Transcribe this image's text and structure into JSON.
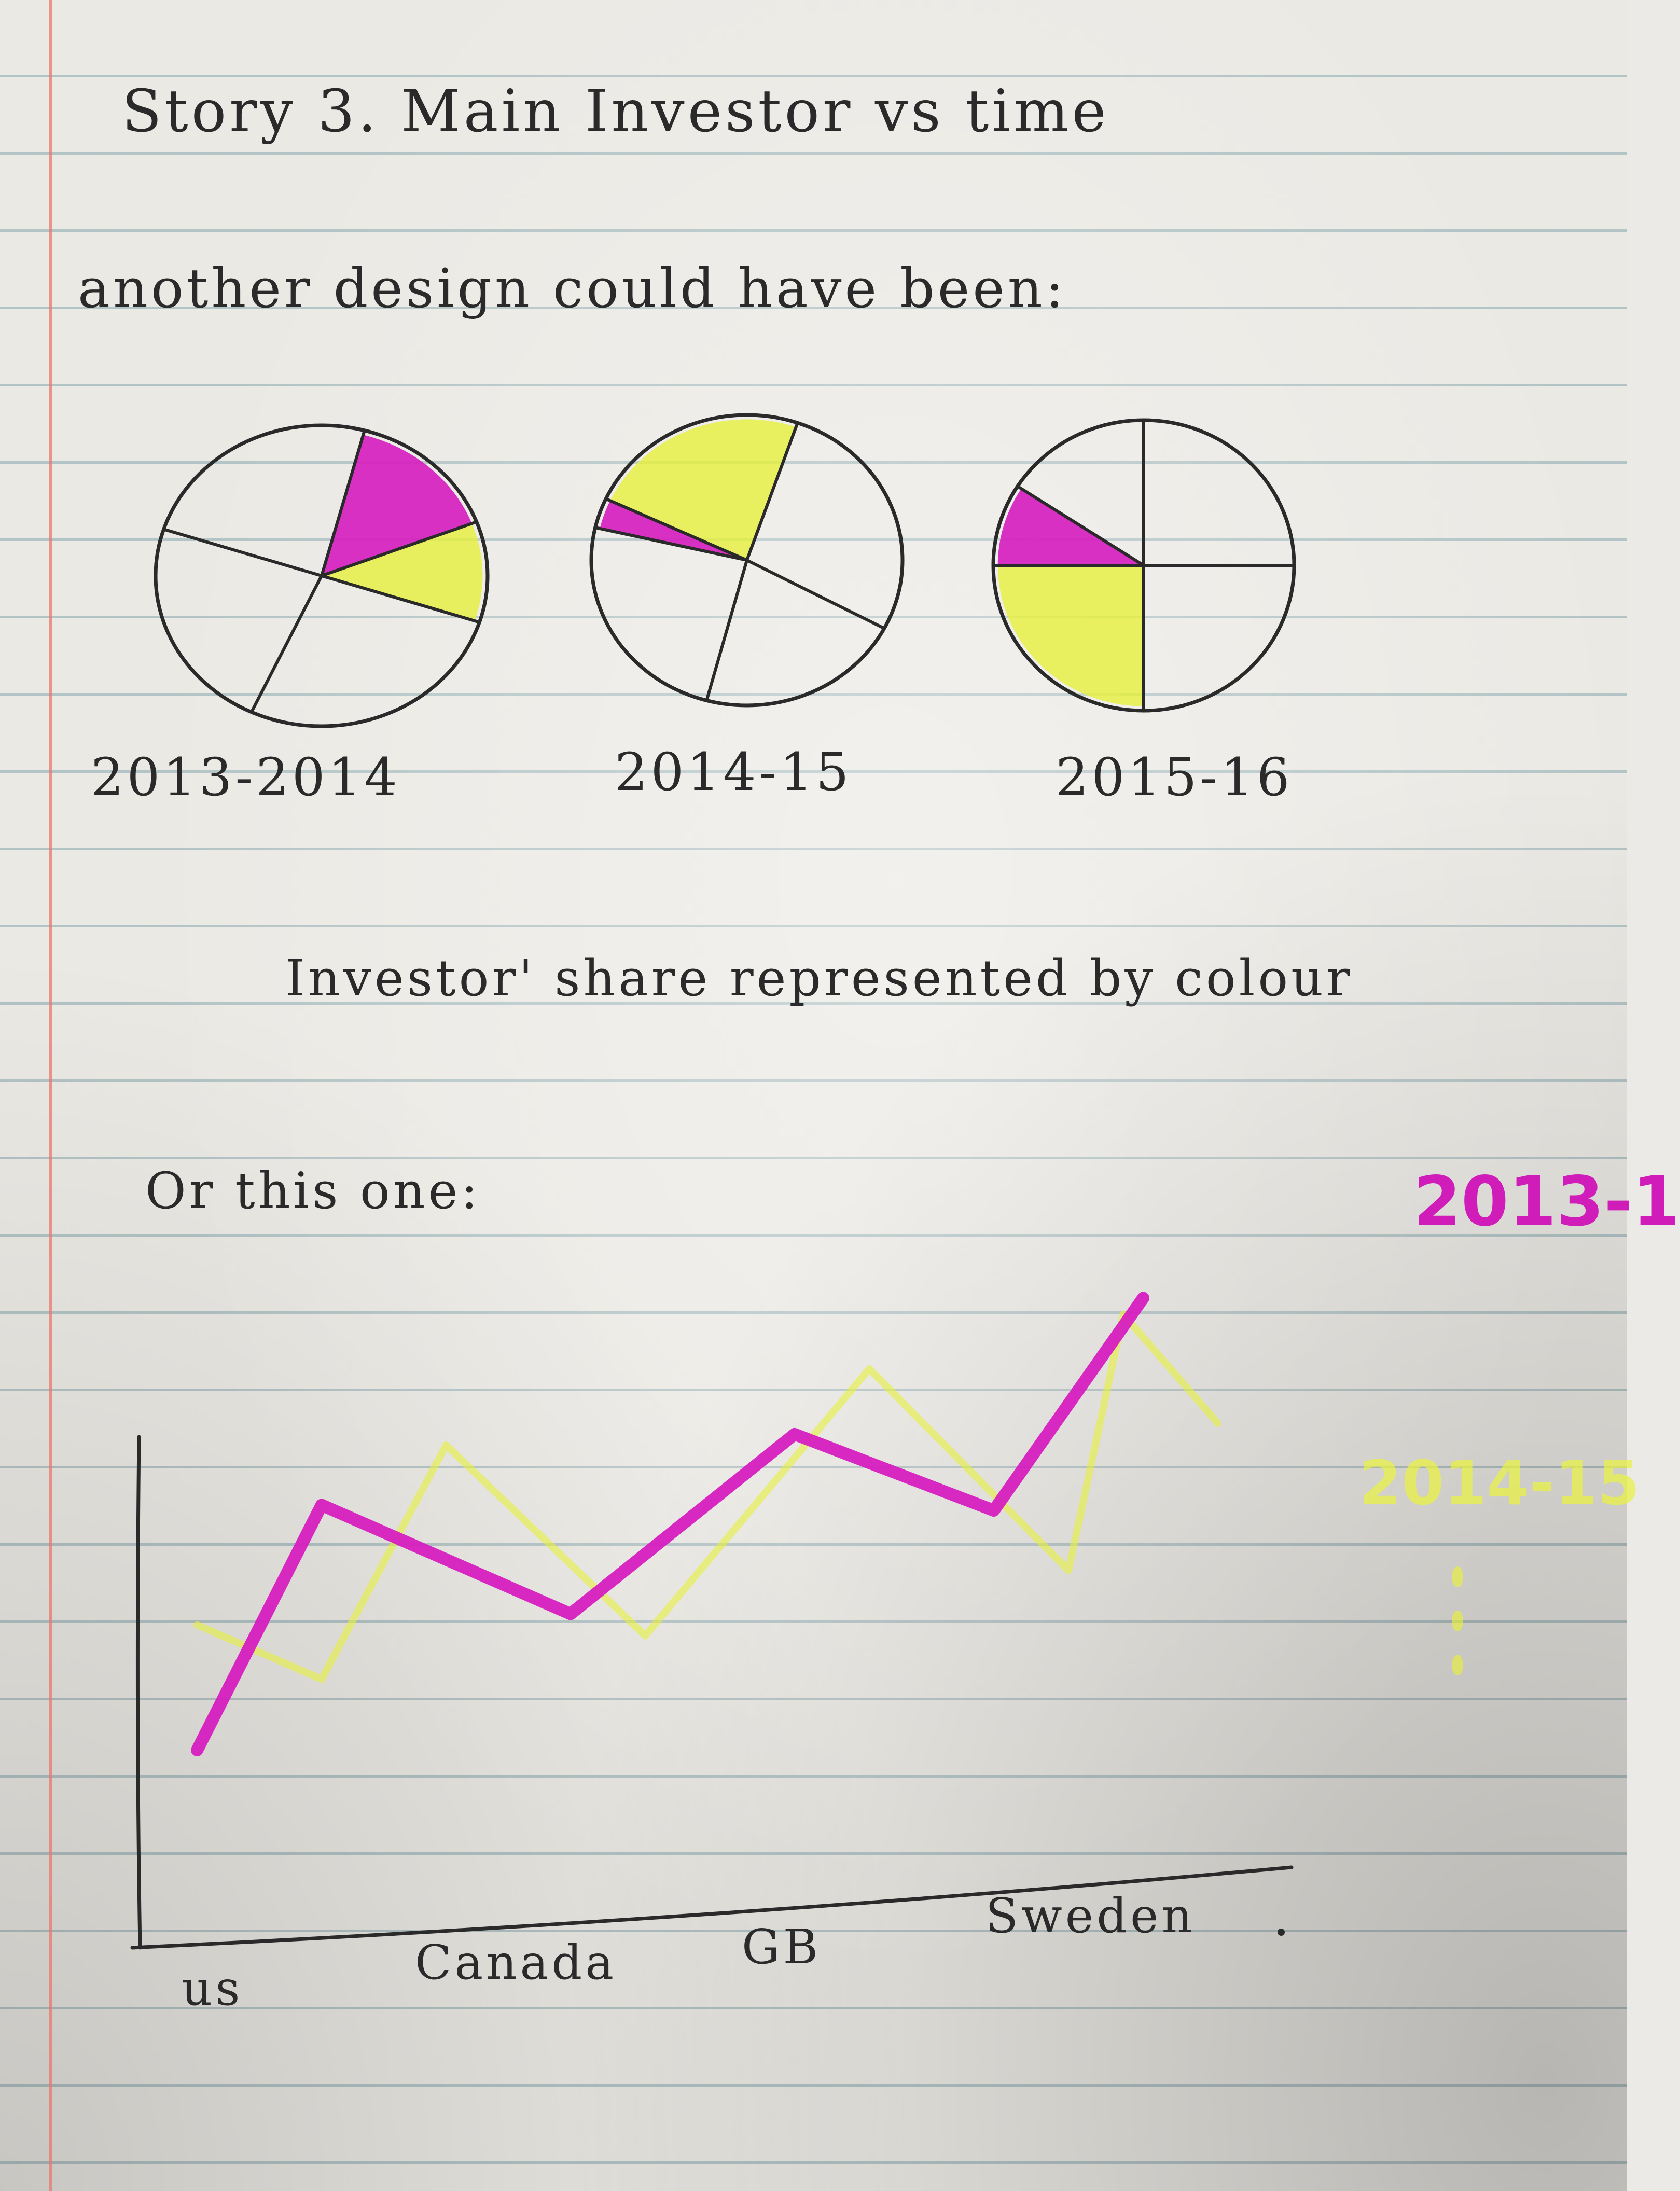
{
  "title": "Story 3. Main Investor vs time",
  "subtitle": "another design could have been:",
  "pies_caption": "Investor' share represented by colour",
  "alternative_label": "Or this one:",
  "colors": {
    "magenta": "#d61fbf",
    "yellow": "#e6f03c",
    "ink": "#2a2a2a"
  },
  "chart_data": [
    {
      "type": "pie",
      "title": "",
      "charts": [
        {
          "label": "2013-2014",
          "highlighted": [
            {
              "color": "magenta",
              "start_deg": 15,
              "end_deg": 69
            },
            {
              "color": "yellow",
              "start_deg": 69,
              "end_deg": 108
            }
          ],
          "divider_angles_deg": [
            15,
            69,
            108,
            205,
            288
          ]
        },
        {
          "label": "2014-15",
          "highlighted": [
            {
              "color": "yellow",
              "start_deg": -65,
              "end_deg": 19
            },
            {
              "color": "magenta",
              "start_deg": 283,
              "end_deg": 295
            }
          ],
          "divider_angles_deg": [
            19,
            118,
            195,
            283,
            295
          ]
        },
        {
          "label": "2015-16",
          "highlighted": [
            {
              "color": "magenta",
              "start_deg": 270,
              "end_deg": 303
            },
            {
              "color": "yellow",
              "start_deg": 180,
              "end_deg": 270
            }
          ],
          "divider_angles_deg": [
            0,
            90,
            180,
            270,
            303
          ]
        }
      ]
    },
    {
      "type": "line",
      "title": "",
      "xlabel": "",
      "ylabel": "",
      "categories": [
        "us",
        "Canada",
        "GB",
        "Sweden"
      ],
      "legend": [
        "2013-1",
        "2014-15"
      ],
      "series": [
        {
          "name": "2013-1",
          "color": "magenta",
          "points": [
            [
              0,
              0.12
            ],
            [
              0.5,
              0.57
            ],
            [
              1.5,
              0.37
            ],
            [
              2.4,
              0.7
            ],
            [
              3.2,
              0.56
            ],
            [
              3.8,
              0.95
            ]
          ]
        },
        {
          "name": "2014-15",
          "color": "yellow",
          "points": [
            [
              0,
              0.35
            ],
            [
              0.5,
              0.25
            ],
            [
              1.0,
              0.68
            ],
            [
              1.8,
              0.33
            ],
            [
              2.7,
              0.82
            ],
            [
              3.5,
              0.45
            ],
            [
              3.72,
              0.92
            ],
            [
              4.1,
              0.72
            ]
          ]
        }
      ],
      "ylim": [
        0,
        1
      ],
      "continuation_marker": "..."
    }
  ]
}
